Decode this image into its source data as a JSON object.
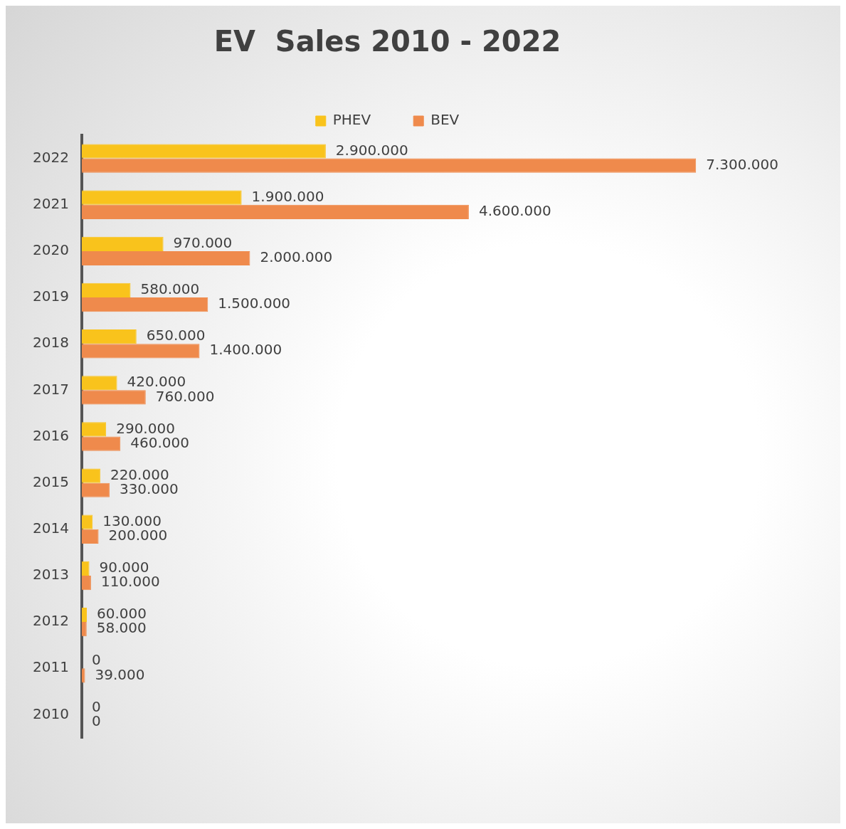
{
  "chart_data": {
    "type": "bar",
    "orientation": "horizontal",
    "title": "EV  Sales 2010 - 2022",
    "legend": "top",
    "grid": false,
    "categories": [
      "2022",
      "2021",
      "2020",
      "2019",
      "2018",
      "2017",
      "2016",
      "2015",
      "2014",
      "2013",
      "2012",
      "2011",
      "2010"
    ],
    "series": [
      {
        "name": "PHEV",
        "color": "#f9c31c",
        "values": [
          2900000,
          1900000,
          970000,
          580000,
          650000,
          420000,
          290000,
          220000,
          130000,
          90000,
          60000,
          0,
          0
        ],
        "value_labels": [
          "2.900.000",
          "1.900.000",
          "970.000",
          "580.000",
          "650.000",
          "420.000",
          "290.000",
          "220.000",
          "130.000",
          "90.000",
          "60.000",
          "0",
          "0"
        ]
      },
      {
        "name": "BEV",
        "color": "#ef8a4c",
        "values": [
          7300000,
          4600000,
          2000000,
          1500000,
          1400000,
          760000,
          460000,
          330000,
          200000,
          110000,
          58000,
          39000,
          0
        ],
        "value_labels": [
          "7.300.000",
          "4.600.000",
          "2.000.000",
          "1.500.000",
          "1.400.000",
          "760.000",
          "460.000",
          "330.000",
          "200.000",
          "110.000",
          "58.000",
          "39.000",
          "0"
        ]
      }
    ]
  }
}
